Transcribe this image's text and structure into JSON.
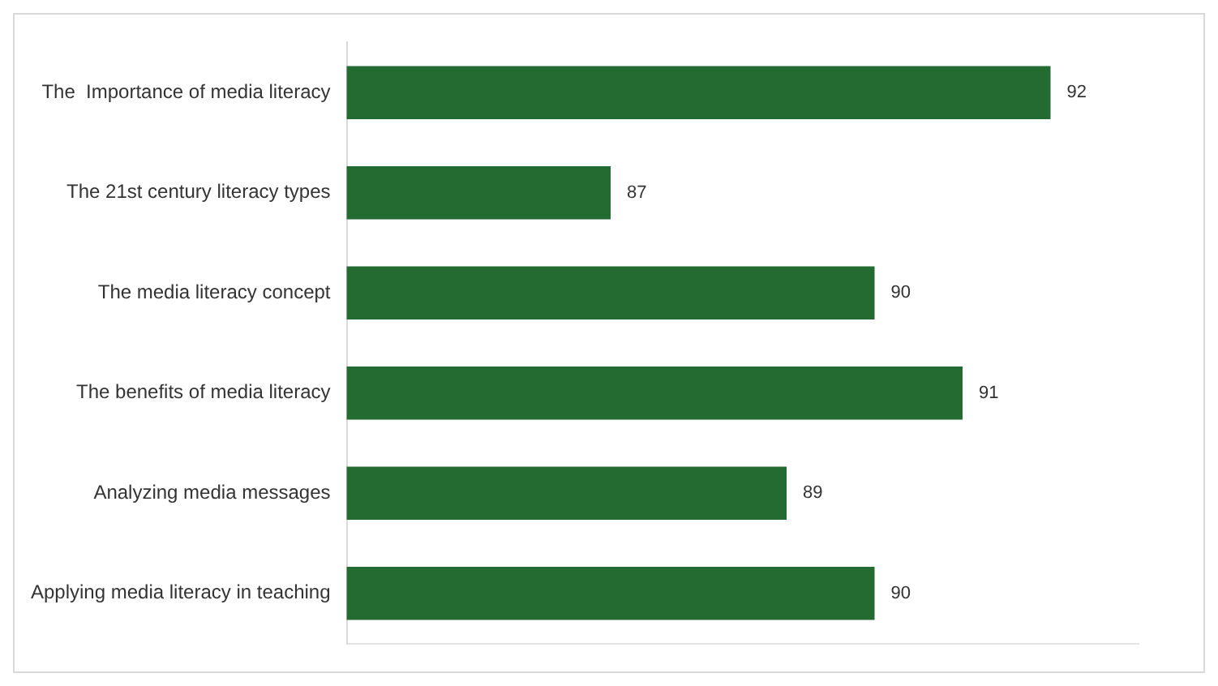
{
  "chart_data": {
    "type": "bar",
    "orientation": "horizontal",
    "categories": [
      "The  Importance of media literacy",
      "The 21st century literacy types",
      "The media literacy concept",
      "The benefits of media literacy",
      "Analyzing media messages",
      "Applying media literacy in teaching"
    ],
    "values": [
      92,
      87,
      90,
      91,
      89,
      90
    ],
    "color": "#236b30",
    "xlim": [
      84,
      93
    ],
    "tick_labels": "y",
    "grid": false,
    "legend": false,
    "data_labels": true
  }
}
